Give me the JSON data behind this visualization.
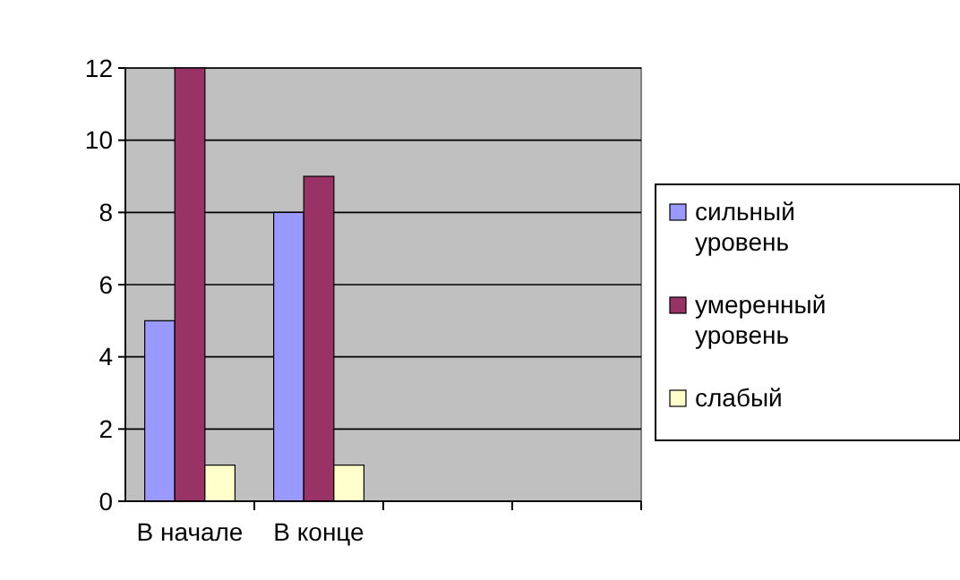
{
  "chart_data": {
    "type": "bar",
    "categories": [
      "В начале",
      "В конце",
      null,
      null
    ],
    "series": [
      {
        "name": "сильный уровень",
        "color": "#9999ff",
        "values": [
          5,
          8,
          null,
          null
        ]
      },
      {
        "name": "умеренный уровень",
        "color": "#993366",
        "values": [
          12,
          9,
          null,
          null
        ]
      },
      {
        "name": "слабый",
        "color": "#ffffcc",
        "values": [
          1,
          1,
          null,
          null
        ]
      }
    ],
    "ylim": [
      0,
      12
    ],
    "yticks": [
      0,
      2,
      4,
      6,
      8,
      10,
      12
    ],
    "grid": "y",
    "legend": "right"
  }
}
